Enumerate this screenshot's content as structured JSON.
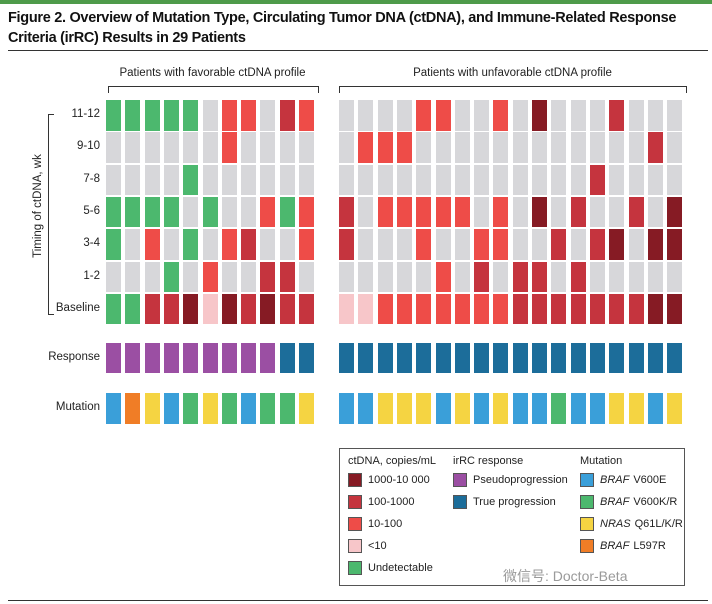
{
  "title": "Figure 2. Overview of Mutation Type, Circulating Tumor DNA (ctDNA), and Immune-Related Response Criteria (irRC) Results in 29 Patients",
  "watermark": "微信号: Doctor-Beta",
  "colors": {
    "D": "#861b24",
    "M": "#c5343e",
    "L": "#ee4c48",
    "P": "#f7c6c9",
    "G": "#4cb86e",
    "N": "#d7d7da",
    "Pseudo": "#9b4fa3",
    "True": "#1c6d9a",
    "V600E": "#3a9fd9",
    "V600K": "#4cb86e",
    "NRAS": "#f5d442",
    "L597R": "#f07d26"
  },
  "chart_data": {
    "type": "heatmap",
    "y_axis_label": "Timing of ctDNA, wk",
    "groups": [
      {
        "label": "Patients with favorable ctDNA profile",
        "ctdna": [
          [
            "G",
            "G",
            "G",
            "G",
            "G",
            "N",
            "L",
            "L",
            "N",
            "M",
            "L"
          ],
          [
            "N",
            "N",
            "N",
            "N",
            "N",
            "N",
            "L",
            "N",
            "N",
            "N",
            "N"
          ],
          [
            "N",
            "N",
            "N",
            "N",
            "G",
            "N",
            "N",
            "N",
            "N",
            "N",
            "N"
          ],
          [
            "G",
            "G",
            "G",
            "G",
            "N",
            "G",
            "N",
            "N",
            "L",
            "G",
            "L"
          ],
          [
            "G",
            "N",
            "L",
            "N",
            "G",
            "N",
            "L",
            "M",
            "N",
            "N",
            "L"
          ],
          [
            "N",
            "N",
            "N",
            "G",
            "N",
            "L",
            "N",
            "N",
            "M",
            "M",
            "N"
          ],
          [
            "G",
            "G",
            "M",
            "M",
            "D",
            "P",
            "D",
            "M",
            "D",
            "M",
            "M"
          ]
        ],
        "response": [
          "Pseudo",
          "Pseudo",
          "Pseudo",
          "Pseudo",
          "Pseudo",
          "Pseudo",
          "Pseudo",
          "Pseudo",
          "Pseudo",
          "True",
          "True"
        ],
        "mutation": [
          "V600E",
          "L597R",
          "NRAS",
          "V600E",
          "V600K",
          "NRAS",
          "V600K",
          "V600E",
          "V600K",
          "V600K",
          "NRAS"
        ]
      },
      {
        "label": "Patients with unfavorable ctDNA profile",
        "ctdna": [
          [
            "N",
            "N",
            "N",
            "N",
            "L",
            "L",
            "N",
            "N",
            "L",
            "N",
            "D",
            "N",
            "N",
            "N",
            "M",
            "N",
            "N",
            "N"
          ],
          [
            "N",
            "L",
            "L",
            "L",
            "N",
            "N",
            "N",
            "N",
            "N",
            "N",
            "N",
            "N",
            "N",
            "N",
            "N",
            "N",
            "M",
            "N"
          ],
          [
            "N",
            "N",
            "N",
            "N",
            "N",
            "N",
            "N",
            "N",
            "N",
            "N",
            "N",
            "N",
            "N",
            "M",
            "N",
            "N",
            "N",
            "N"
          ],
          [
            "M",
            "N",
            "L",
            "L",
            "L",
            "L",
            "L",
            "N",
            "L",
            "N",
            "D",
            "N",
            "M",
            "N",
            "N",
            "M",
            "N",
            "D"
          ],
          [
            "M",
            "N",
            "N",
            "N",
            "L",
            "N",
            "N",
            "L",
            "L",
            "N",
            "N",
            "M",
            "N",
            "M",
            "D",
            "N",
            "D",
            "D"
          ],
          [
            "N",
            "N",
            "N",
            "N",
            "N",
            "L",
            "N",
            "M",
            "N",
            "M",
            "M",
            "N",
            "M",
            "N",
            "N",
            "N",
            "N",
            "N"
          ],
          [
            "P",
            "P",
            "L",
            "L",
            "L",
            "L",
            "L",
            "L",
            "L",
            "M",
            "M",
            "M",
            "M",
            "M",
            "M",
            "M",
            "D",
            "D"
          ]
        ],
        "response": [
          "True",
          "True",
          "True",
          "True",
          "True",
          "True",
          "True",
          "True",
          "True",
          "True",
          "True",
          "True",
          "True",
          "True",
          "True",
          "True",
          "True",
          "True"
        ],
        "mutation": [
          "V600E",
          "V600E",
          "NRAS",
          "NRAS",
          "NRAS",
          "V600E",
          "NRAS",
          "V600E",
          "NRAS",
          "V600E",
          "V600E",
          "V600K",
          "V600E",
          "V600E",
          "NRAS",
          "NRAS",
          "V600E",
          "NRAS"
        ]
      }
    ],
    "row_labels": [
      "11-12",
      "9-10",
      "7-8",
      "5-6",
      "3-4",
      "1-2",
      "Baseline"
    ],
    "response_label": "Response",
    "mutation_label": "Mutation",
    "legend": {
      "ctdna": {
        "title": "ctDNA, copies/mL",
        "items": [
          {
            "key": "D",
            "label": "1000-10 000"
          },
          {
            "key": "M",
            "label": "100-1000"
          },
          {
            "key": "L",
            "label": "10-100"
          },
          {
            "key": "P",
            "label": "<10"
          },
          {
            "key": "G",
            "label": "Undetectable"
          }
        ]
      },
      "response": {
        "title": "irRC response",
        "items": [
          {
            "key": "Pseudo",
            "label": "Pseudoprogression"
          },
          {
            "key": "True",
            "label": "True progression"
          }
        ]
      },
      "mutation": {
        "title": "Mutation",
        "items": [
          {
            "key": "V600E",
            "gene": "BRAF",
            "label": "V600E"
          },
          {
            "key": "V600K",
            "gene": "BRAF",
            "label": "V600K/R"
          },
          {
            "key": "NRAS",
            "gene": "NRAS",
            "label": "Q61L/K/R"
          },
          {
            "key": "L597R",
            "gene": "BRAF",
            "label": "L597R"
          }
        ]
      }
    }
  }
}
